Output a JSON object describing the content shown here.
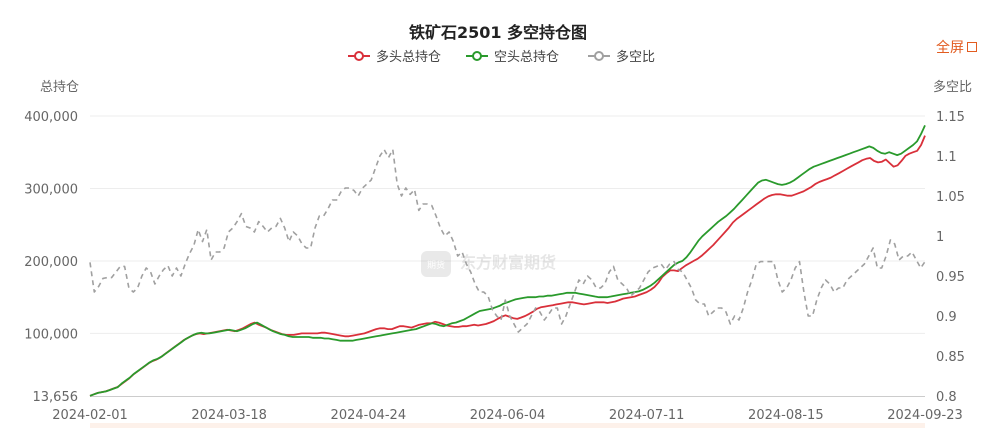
{
  "fullscreen_label": "全屏",
  "chart_data": {
    "type": "line",
    "title": "铁矿石2501 多空持仓图",
    "ylabel": "总持仓",
    "y2label": "多空比",
    "ylim": [
      13656,
      400000
    ],
    "y2lim": [
      0.8,
      1.15
    ],
    "yticks": [
      "13,656",
      "100,000",
      "200,000",
      "300,000",
      "400,000"
    ],
    "y2ticks": [
      "0.8",
      "0.85",
      "0.9",
      "0.95",
      "1",
      "1.05",
      "1.1",
      "1.15"
    ],
    "xticks": [
      "2024-02-01",
      "2024-03-18",
      "2024-04-24",
      "2024-06-04",
      "2024-07-11",
      "2024-08-15",
      "2024-09-23"
    ],
    "legend_position": "top-center",
    "watermark": "东方财富期货",
    "series": [
      {
        "name": "多头总持仓",
        "color": "#d9303a",
        "axis": "left",
        "dashed": false,
        "values": [
          14000,
          16000,
          18000,
          19000,
          20000,
          22000,
          24000,
          26000,
          30000,
          34000,
          38000,
          43000,
          47000,
          51000,
          55000,
          59000,
          62000,
          64000,
          67000,
          71000,
          75000,
          79000,
          83000,
          87000,
          91000,
          94000,
          97000,
          99000,
          100000,
          99000,
          100000,
          101000,
          102000,
          103000,
          104000,
          105000,
          104000,
          103000,
          105000,
          107000,
          110000,
          113000,
          115000,
          112000,
          110000,
          108000,
          105000,
          103000,
          101000,
          99000,
          98000,
          98000,
          98000,
          99000,
          100000,
          100000,
          100000,
          100000,
          100000,
          101000,
          101000,
          100000,
          99000,
          98000,
          97000,
          96000,
          96000,
          97000,
          98000,
          99000,
          100000,
          102000,
          104000,
          106000,
          107000,
          107000,
          106000,
          106000,
          108000,
          110000,
          110000,
          109000,
          108000,
          110000,
          112000,
          113000,
          114000,
          114000,
          116000,
          115000,
          113000,
          111000,
          110000,
          109000,
          109000,
          110000,
          110000,
          111000,
          112000,
          111000,
          112000,
          113000,
          115000,
          117000,
          120000,
          123000,
          125000,
          123000,
          121000,
          120000,
          122000,
          124000,
          127000,
          130000,
          134000,
          136000,
          137000,
          138000,
          139000,
          140000,
          141000,
          142000,
          143000,
          143000,
          142000,
          141000,
          140000,
          141000,
          142000,
          143000,
          143000,
          143000,
          142000,
          143000,
          144000,
          146000,
          148000,
          149000,
          150000,
          151000,
          153000,
          155000,
          157000,
          160000,
          164000,
          170000,
          178000,
          183000,
          187000,
          187000,
          186000,
          190000,
          194000,
          197000,
          200000,
          203000,
          207000,
          212000,
          217000,
          222000,
          228000,
          234000,
          240000,
          246000,
          253000,
          258000,
          262000,
          266000,
          270000,
          274000,
          278000,
          282000,
          286000,
          289000,
          291000,
          292000,
          292000,
          291000,
          290000,
          290000,
          292000,
          294000,
          296000,
          299000,
          302000,
          306000,
          309000,
          311000,
          313000,
          315000,
          318000,
          321000,
          324000,
          327000,
          330000,
          333000,
          336000,
          339000,
          341000,
          342000,
          338000,
          336000,
          337000,
          340000,
          335000,
          330000,
          332000,
          338000,
          345000,
          348000,
          350000,
          352000,
          360000,
          373000
        ]
      },
      {
        "name": "空头总持仓",
        "color": "#2a9a2c",
        "axis": "left",
        "dashed": false,
        "values": [
          14000,
          16000,
          18000,
          19000,
          20000,
          22000,
          24000,
          26000,
          31000,
          35000,
          39000,
          44000,
          48000,
          52000,
          56000,
          60000,
          63000,
          65000,
          68000,
          72000,
          76000,
          80000,
          84000,
          88000,
          92000,
          95000,
          98000,
          100000,
          101000,
          100000,
          100000,
          101000,
          102000,
          103000,
          104000,
          105000,
          104000,
          103000,
          105000,
          107000,
          110000,
          113000,
          115000,
          112000,
          109000,
          106000,
          103000,
          101000,
          99000,
          98000,
          96000,
          95000,
          95000,
          95000,
          95000,
          95000,
          94000,
          94000,
          94000,
          93000,
          93000,
          92000,
          91000,
          90000,
          90000,
          90000,
          90000,
          91000,
          92000,
          93000,
          94000,
          95000,
          96000,
          97000,
          98000,
          99000,
          100000,
          101000,
          102000,
          103000,
          104000,
          105000,
          106000,
          108000,
          110000,
          112000,
          114000,
          113000,
          111000,
          110000,
          112000,
          114000,
          115000,
          117000,
          119000,
          122000,
          125000,
          128000,
          131000,
          132000,
          133000,
          134000,
          136000,
          138000,
          141000,
          143000,
          145000,
          147000,
          148000,
          149000,
          150000,
          150000,
          150000,
          151000,
          151000,
          152000,
          152000,
          153000,
          154000,
          155000,
          156000,
          156000,
          156000,
          155000,
          154000,
          153000,
          152000,
          151000,
          150000,
          150000,
          150000,
          151000,
          152000,
          153000,
          154000,
          155000,
          156000,
          157000,
          158000,
          160000,
          163000,
          166000,
          170000,
          175000,
          180000,
          185000,
          190000,
          195000,
          198000,
          200000,
          205000,
          212000,
          220000,
          228000,
          234000,
          239000,
          244000,
          249000,
          254000,
          258000,
          262000,
          267000,
          272000,
          278000,
          284000,
          290000,
          296000,
          302000,
          308000,
          311000,
          312000,
          310000,
          308000,
          306000,
          305000,
          306000,
          308000,
          311000,
          315000,
          319000,
          323000,
          327000,
          330000,
          332000,
          334000,
          336000,
          338000,
          340000,
          342000,
          344000,
          346000,
          348000,
          350000,
          352000,
          354000,
          356000,
          358000,
          356000,
          352000,
          349000,
          348000,
          350000,
          348000,
          346000,
          348000,
          352000,
          356000,
          360000,
          365000,
          375000,
          387000
        ]
      },
      {
        "name": "多空比",
        "color": "#a0a0a0",
        "axis": "right",
        "dashed": true,
        "values": [
          0.967,
          0.93,
          0.937,
          0.947,
          0.948,
          0.948,
          0.955,
          0.962,
          0.962,
          0.935,
          0.93,
          0.935,
          0.95,
          0.96,
          0.955,
          0.94,
          0.95,
          0.958,
          0.963,
          0.95,
          0.96,
          0.95,
          0.965,
          0.978,
          0.988,
          1.008,
          0.993,
          1.008,
          0.97,
          0.98,
          0.98,
          0.985,
          1.005,
          1.01,
          1.018,
          1.028,
          1.012,
          1.01,
          1.005,
          1.018,
          1.012,
          1.005,
          1.01,
          1.012,
          1.022,
          1.01,
          0.993,
          1.005,
          1.0,
          0.99,
          0.985,
          0.985,
          1.01,
          1.025,
          1.025,
          1.034,
          1.045,
          1.045,
          1.055,
          1.06,
          1.06,
          1.057,
          1.05,
          1.06,
          1.065,
          1.07,
          1.085,
          1.1,
          1.108,
          1.098,
          1.108,
          1.065,
          1.05,
          1.06,
          1.052,
          1.058,
          1.032,
          1.04,
          1.04,
          1.038,
          1.025,
          1.01,
          1.0,
          1.005,
          0.993,
          0.975,
          0.98,
          0.965,
          0.955,
          0.94,
          0.93,
          0.93,
          0.925,
          0.908,
          0.9,
          0.895,
          0.92,
          0.9,
          0.89,
          0.88,
          0.885,
          0.89,
          0.9,
          0.91,
          0.905,
          0.895,
          0.902,
          0.91,
          0.91,
          0.89,
          0.9,
          0.915,
          0.93,
          0.945,
          0.94,
          0.95,
          0.945,
          0.935,
          0.935,
          0.94,
          0.955,
          0.962,
          0.945,
          0.94,
          0.935,
          0.925,
          0.93,
          0.935,
          0.945,
          0.955,
          0.96,
          0.962,
          0.965,
          0.958,
          0.965,
          0.968,
          0.958,
          0.955,
          0.945,
          0.935,
          0.92,
          0.915,
          0.915,
          0.9,
          0.905,
          0.91,
          0.91,
          0.905,
          0.89,
          0.9,
          0.895,
          0.91,
          0.93,
          0.945,
          0.965,
          0.968,
          0.968,
          0.968,
          0.968,
          0.945,
          0.93,
          0.935,
          0.945,
          0.96,
          0.968,
          0.93,
          0.9,
          0.9,
          0.92,
          0.935,
          0.945,
          0.94,
          0.93,
          0.935,
          0.935,
          0.945,
          0.95,
          0.955,
          0.96,
          0.965,
          0.975,
          0.985,
          0.96,
          0.96,
          0.975,
          0.995,
          0.99,
          0.97,
          0.975,
          0.975,
          0.98,
          0.97,
          0.96,
          0.968
        ]
      }
    ]
  }
}
